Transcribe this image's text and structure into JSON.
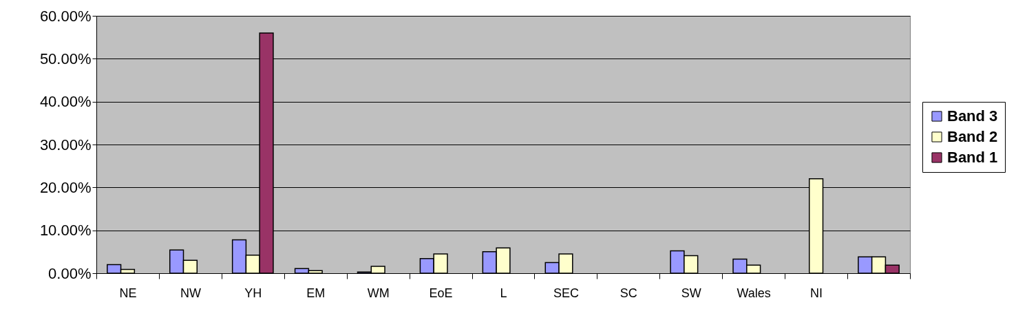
{
  "chart_data": {
    "type": "bar",
    "categories": [
      "NE",
      "NW",
      "YH",
      "EM",
      "WM",
      "EoE",
      "L",
      "SEC",
      "SC",
      "SW",
      "Wales",
      "NI",
      null
    ],
    "series": [
      {
        "name": "Band 3",
        "color": "#9999ff",
        "values": [
          2.0,
          5.4,
          7.8,
          1.1,
          0.3,
          3.4,
          5.0,
          2.5,
          null,
          5.2,
          3.3,
          null,
          3.8
        ]
      },
      {
        "name": "Band 2",
        "color": "#ffffcc",
        "values": [
          0.9,
          3.0,
          4.2,
          0.6,
          1.6,
          4.5,
          5.9,
          4.5,
          null,
          4.1,
          1.9,
          22.0,
          3.8
        ]
      },
      {
        "name": "Band 1",
        "color": "#993366",
        "values": [
          null,
          null,
          56.0,
          null,
          null,
          null,
          null,
          null,
          null,
          null,
          null,
          null,
          1.9
        ]
      }
    ],
    "ylim": [
      0,
      60
    ],
    "yticks": [
      {
        "value": 0,
        "label": "0.00%"
      },
      {
        "value": 10,
        "label": "10.00%"
      },
      {
        "value": 20,
        "label": "20.00%"
      },
      {
        "value": 30,
        "label": "30.00%"
      },
      {
        "value": 40,
        "label": "40.00%"
      },
      {
        "value": 50,
        "label": "50.00%"
      },
      {
        "value": 60,
        "label": "60.00%"
      }
    ],
    "grid": "y",
    "legend": "right"
  }
}
